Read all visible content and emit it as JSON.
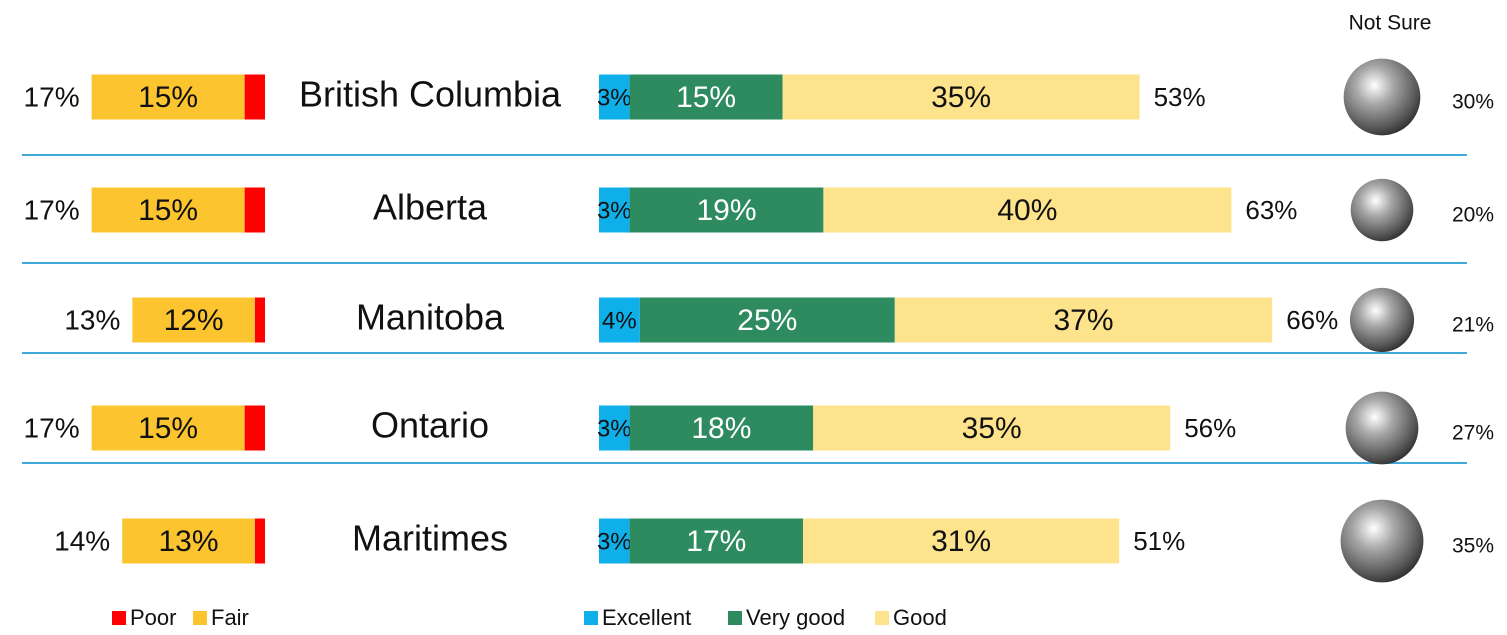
{
  "chart_data": {
    "type": "diverging_bar",
    "categories": [
      "British Columbia",
      "Alberta",
      "Manitoba",
      "Ontario",
      "Maritimes"
    ],
    "series": [
      {
        "name": "Poor",
        "color": "#ff0000",
        "side": "negative",
        "values": [
          2,
          2,
          1,
          2,
          1
        ]
      },
      {
        "name": "Fair",
        "color": "#fcc52f",
        "side": "negative",
        "values": [
          15,
          15,
          12,
          15,
          13
        ],
        "value_labels": [
          "15%",
          "15%",
          "12%",
          "15%",
          "13%"
        ]
      },
      {
        "name": "Excellent",
        "color": "#0fb0ea",
        "side": "positive",
        "values": [
          3,
          3,
          4,
          3,
          3
        ],
        "value_labels": [
          "3%",
          "3%",
          "4%",
          "3%",
          "3%"
        ]
      },
      {
        "name": "Very good",
        "color": "#2e8b5f",
        "side": "positive",
        "values": [
          15,
          19,
          25,
          18,
          17
        ],
        "value_labels": [
          "15%",
          "19%",
          "25%",
          "18%",
          "17%"
        ]
      },
      {
        "name": "Good",
        "color": "#fde38b",
        "side": "positive",
        "values": [
          35,
          40,
          37,
          35,
          31
        ],
        "value_labels": [
          "35%",
          "40%",
          "37%",
          "35%",
          "31%"
        ]
      }
    ],
    "negative_totals": {
      "values": [
        17,
        17,
        13,
        17,
        14
      ],
      "value_labels": [
        "17%",
        "17%",
        "13%",
        "17%",
        "14%"
      ]
    },
    "positive_totals": {
      "values": [
        53,
        63,
        66,
        56,
        51
      ],
      "value_labels": [
        "53%",
        "63%",
        "66%",
        "56%",
        "51%"
      ]
    },
    "not_sure": {
      "title": "Not Sure",
      "values": [
        30,
        20,
        21,
        27,
        35
      ],
      "value_labels": [
        "30%",
        "20%",
        "21%",
        "27%",
        "35%"
      ]
    }
  }
}
